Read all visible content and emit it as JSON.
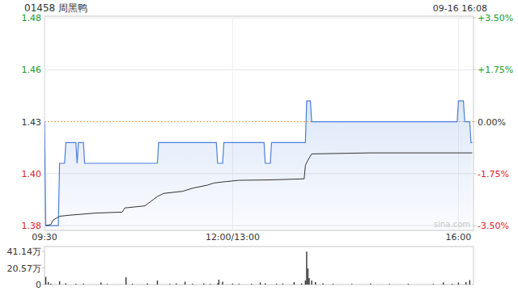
{
  "chart_data": [
    {
      "type": "line",
      "title": "01458 周黑鸭",
      "subtitle": "09-16 16:08",
      "annotations": [
        "sina.com"
      ],
      "prev_close": 1.43,
      "xlim": [
        0,
        342
      ],
      "xticks": [
        {
          "value": 0,
          "label": "09:30"
        },
        {
          "value": 150,
          "label": "12:00/13:00"
        },
        {
          "value": 330,
          "label": "16:00"
        }
      ],
      "ylim": [
        1.3777,
        1.4808
      ],
      "yticks": [
        {
          "value": 1.48,
          "label": "1.48"
        },
        {
          "value": 1.455,
          "label": "1.46"
        },
        {
          "value": 1.43,
          "label": "1.43"
        },
        {
          "value": 1.405,
          "label": "1.40"
        },
        {
          "value": 1.38,
          "label": "1.38"
        }
      ],
      "y2lim": [
        -3.657,
        3.552
      ],
      "y2ticks": [
        {
          "value": 3.5,
          "label": "+3.50%"
        },
        {
          "value": 1.75,
          "label": "+1.75%"
        },
        {
          "value": 0,
          "label": "0.00%"
        },
        {
          "value": -1.75,
          "label": "-1.75%"
        },
        {
          "value": -3.5,
          "label": "-3.50%"
        }
      ],
      "grid": true,
      "series": [
        {
          "type": "area",
          "color": "#4a7fde",
          "x": [
            0,
            1,
            11,
            12,
            16,
            17,
            25,
            26,
            27,
            31,
            32,
            90,
            91,
            137,
            138,
            142,
            143,
            175,
            176,
            180,
            181,
            208,
            209,
            212,
            213,
            329,
            330,
            334,
            335,
            339,
            340,
            341
          ],
          "values": [
            1.43,
            1.38,
            1.38,
            1.41,
            1.41,
            1.42,
            1.42,
            1.41,
            1.42,
            1.42,
            1.41,
            1.41,
            1.42,
            1.42,
            1.41,
            1.41,
            1.42,
            1.42,
            1.41,
            1.41,
            1.42,
            1.42,
            1.44,
            1.44,
            1.43,
            1.43,
            1.44,
            1.44,
            1.43,
            1.43,
            1.42,
            1.42
          ]
        },
        {
          "type": "line",
          "color": "#333333",
          "x": [
            1,
            5,
            7,
            12,
            20,
            40,
            62,
            64,
            80,
            90,
            95,
            110,
            118,
            130,
            135,
            145,
            155,
            180,
            207,
            208,
            210,
            213,
            260,
            341
          ],
          "values": [
            1.38,
            1.3805,
            1.3827,
            1.3845,
            1.385,
            1.386,
            1.3865,
            1.3885,
            1.3895,
            1.394,
            1.3955,
            1.3965,
            1.398,
            1.3995,
            1.4005,
            1.4012,
            1.4018,
            1.402,
            1.4025,
            1.409,
            1.4115,
            1.4145,
            1.415,
            1.415
          ]
        }
      ]
    },
    {
      "type": "bar",
      "color": "#333333",
      "tick_labels": "y",
      "xlim": [
        0,
        342
      ],
      "ylim": [
        0,
        47.3
      ],
      "yticks": [
        {
          "value": 41.14,
          "label": "41.14万"
        },
        {
          "value": 20.57,
          "label": "20.57万"
        },
        0
      ],
      "x": [
        1,
        3,
        5,
        12,
        17,
        25,
        31,
        45,
        50,
        65,
        70,
        82,
        90,
        100,
        105,
        112,
        118,
        127,
        132,
        138,
        139,
        142,
        150,
        155,
        165,
        172,
        176,
        185,
        190,
        199,
        205,
        208,
        209,
        210,
        211,
        213,
        216,
        222,
        230,
        245,
        260,
        275,
        290,
        310,
        318,
        325,
        330,
        336,
        339
      ],
      "values": [
        9.5,
        3,
        1,
        4,
        1.5,
        1,
        1.2,
        2.5,
        0.8,
        9,
        1,
        1.5,
        5,
        0.8,
        1.5,
        3.5,
        1,
        1.5,
        0.8,
        1.5,
        6,
        3.5,
        1.2,
        0.8,
        1,
        2.5,
        1.5,
        1,
        1.2,
        3,
        1.5,
        5,
        41,
        20,
        8,
        5,
        3,
        1.5,
        1,
        0.8,
        1.2,
        0.8,
        1,
        0.8,
        2.5,
        1,
        2.5,
        3,
        5.5
      ]
    }
  ]
}
